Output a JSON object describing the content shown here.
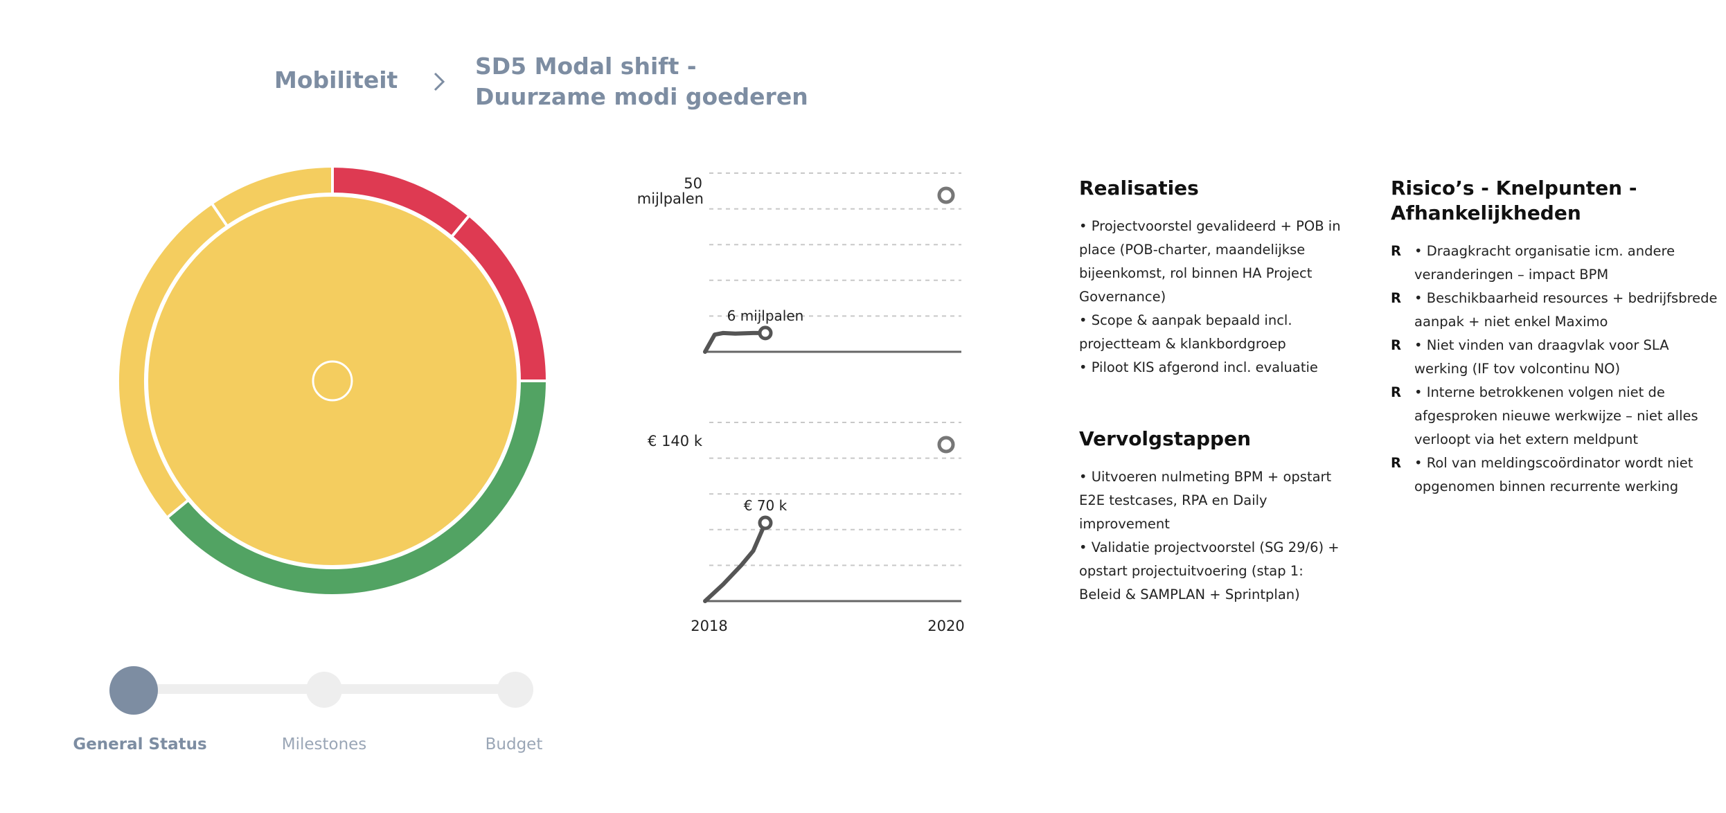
{
  "breadcrumb": {
    "root": "Mobiliteit",
    "current_line1": "SD5 Modal shift -",
    "current_line2": "Duurzame modi goederen"
  },
  "colors": {
    "accent": "#7d8da2",
    "yellow": "#f4cd5f",
    "red": "#de3a52",
    "green": "#52a363",
    "track": "#eeeeee",
    "line": "#555555"
  },
  "donut": {
    "inner_status": "yellow",
    "outer_segments": [
      {
        "status": "green",
        "share": 0.39
      },
      {
        "status": "yellow",
        "share": 0.265
      },
      {
        "status": "yellow",
        "share": 0.095
      },
      {
        "status": "red",
        "share": 0.11
      },
      {
        "status": "red",
        "share": 0.14
      }
    ]
  },
  "status_steps": [
    {
      "label": "General Status",
      "active": true
    },
    {
      "label": "Milestones",
      "active": false
    },
    {
      "label": "Budget",
      "active": false
    }
  ],
  "chart_data": [
    {
      "type": "line",
      "target_label_line1": "50",
      "target_label_line2": "mijlpalen",
      "target_value": 50,
      "current_label": "6 mijlpalen",
      "x": [
        2018.0,
        2018.08,
        2018.15,
        2018.25,
        2018.4,
        2018.5
      ],
      "y": [
        0,
        5.5,
        6,
        5.8,
        6,
        6
      ],
      "target_x": 2020,
      "xlim": [
        2018,
        2020
      ],
      "ylim": [
        0,
        50
      ],
      "grid": true
    },
    {
      "type": "line",
      "target_label": "€ 140 k",
      "target_value": 140,
      "current_label": "€ 70 k",
      "x": [
        2018.0,
        2018.15,
        2018.3,
        2018.4,
        2018.5
      ],
      "y": [
        0,
        15,
        32,
        45,
        70
      ],
      "target_x": 2020,
      "xlim": [
        2018,
        2020
      ],
      "ylim": [
        0,
        140
      ],
      "grid": true,
      "x_tick_labels": [
        "2018",
        "2020"
      ]
    }
  ],
  "realisaties": {
    "title": "Realisaties",
    "items": [
      "• Projectvoorstel gevalideerd + POB in place (POB-charter, maandelijkse bijeenkomst, rol binnen HA Project Governance)",
      "• Scope & aanpak bepaald incl. projectteam & klankbordgroep",
      "• Piloot KIS afgerond incl. evaluatie"
    ]
  },
  "vervolgstappen": {
    "title": "Vervolgstappen",
    "items": [
      "• Uitvoeren nulmeting BPM + opstart E2E testcases, RPA en Daily improvement",
      "• Validatie projectvoorstel (SG 29/6) + opstart projectuitvoering (stap 1: Beleid & SAMPLAN + Sprintplan)"
    ]
  },
  "risicos": {
    "title": "Risico’s - Knelpunten - Afhankelijkheden",
    "items": [
      {
        "tag": "R",
        "text": "• Draagkracht organisatie icm. andere veranderingen – impact BPM"
      },
      {
        "tag": "R",
        "text": "• Beschikbaarheid resources + bedrijfsbrede aanpak + niet enkel Maximo"
      },
      {
        "tag": "R",
        "text": "• Niet vinden van draagvlak voor SLA werking (IF tov volcontinu NO)"
      },
      {
        "tag": "R",
        "text": "• Interne betrokkenen volgen niet de afgesproken nieuwe werkwijze – niet alles verloopt via het extern meldpunt"
      },
      {
        "tag": "R",
        "text": "• Rol van meldingscoördinator wordt niet opgenomen binnen recurrente werking"
      }
    ]
  }
}
